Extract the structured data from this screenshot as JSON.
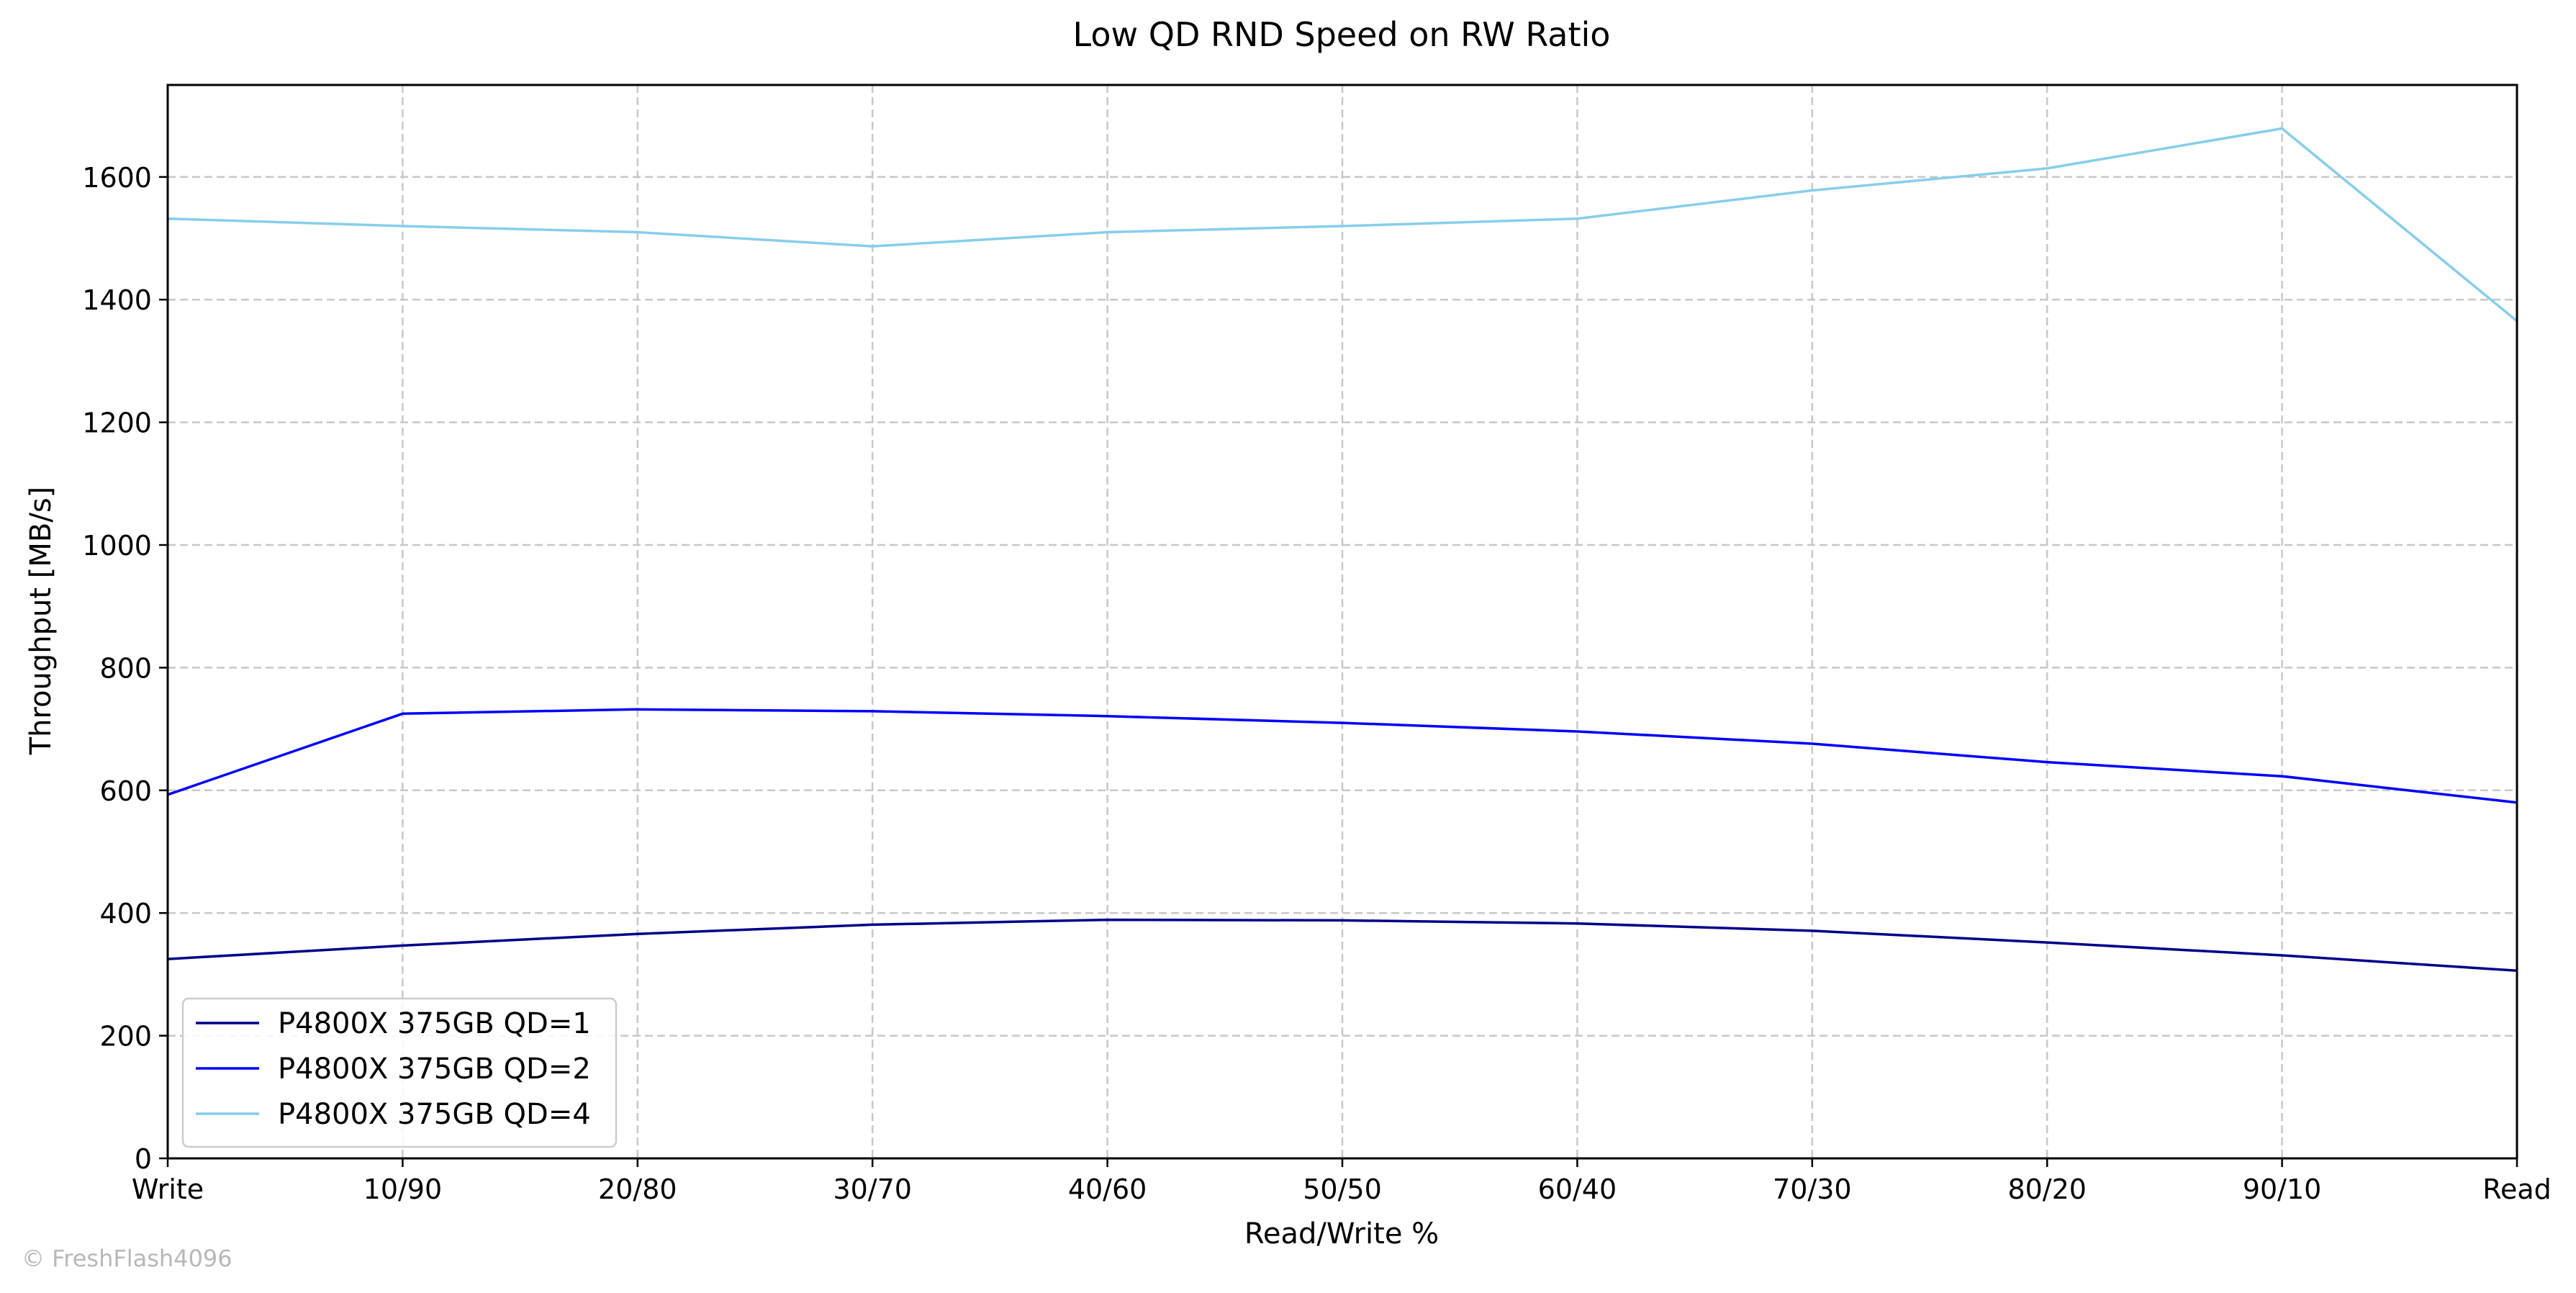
{
  "chart_data": {
    "type": "line",
    "title": "Low QD RND Speed on RW Ratio",
    "xlabel": "Read/Write %",
    "ylabel": "Throughput [MB/s]",
    "categories": [
      "Write",
      "10/90",
      "20/80",
      "30/70",
      "40/60",
      "50/50",
      "60/40",
      "70/30",
      "80/20",
      "90/10",
      "Read"
    ],
    "ylim": [
      0,
      1750
    ],
    "yticks": [
      0,
      200,
      400,
      600,
      800,
      1000,
      1200,
      1400,
      1600
    ],
    "grid": true,
    "legend_position": "lower-left",
    "series": [
      {
        "name": "P4800X 375GB QD=1",
        "color": "#00008b",
        "values": [
          325,
          347,
          366,
          381,
          389,
          388,
          383,
          371,
          352,
          331,
          306
        ]
      },
      {
        "name": "P4800X 375GB QD=2",
        "color": "#0000ff",
        "values": [
          593,
          725,
          732,
          729,
          721,
          710,
          696,
          676,
          646,
          623,
          580
        ]
      },
      {
        "name": "P4800X 375GB QD=4",
        "color": "#87ceeb",
        "values": [
          1532,
          1520,
          1510,
          1487,
          1510,
          1520,
          1532,
          1578,
          1614,
          1679,
          1365
        ]
      }
    ]
  },
  "watermark": "© FreshFlash4096"
}
